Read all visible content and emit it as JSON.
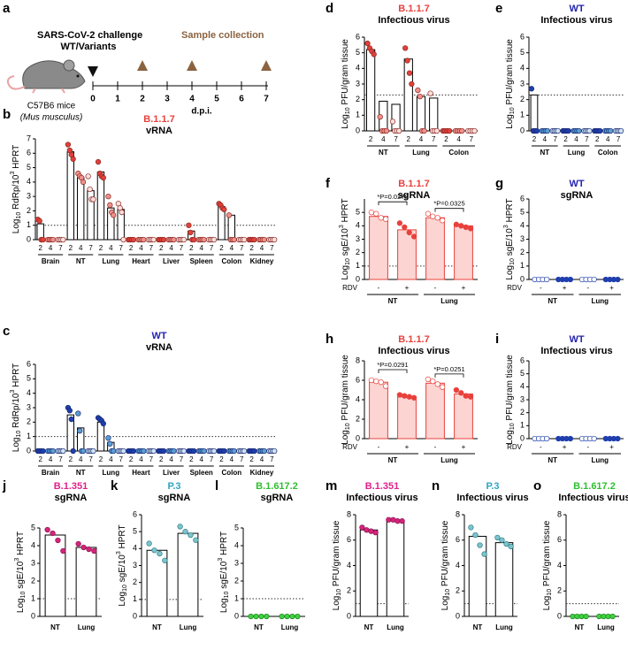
{
  "panel_a": {
    "label": "a",
    "challenge": "SARS-CoV-2 challenge",
    "variants": "WT/Variants",
    "collection": "Sample collection",
    "mouse": "C57B6 mice",
    "species": "(Mus musculus)",
    "xlabel": "d.p.i.",
    "days": [
      0,
      1,
      2,
      3,
      4,
      5,
      6,
      7
    ],
    "challenge_day": 0,
    "sample_days": [
      2,
      4,
      7
    ],
    "sample_color": "#8b6340"
  },
  "chart_data": [
    {
      "label": "b",
      "type": "bar",
      "title": "B.1.1.7",
      "subtitle": "vRNA",
      "title_color": "#e8413c",
      "ylabel": [
        "Log",
        "10",
        " RdRp/10",
        "3",
        " HPRT"
      ],
      "ylim": [
        0,
        7
      ],
      "yticks": [
        0,
        1,
        2,
        3,
        4,
        5,
        6,
        7
      ],
      "threshold": 1,
      "groups": [
        "Brain",
        "NT",
        "Lung",
        "Heart",
        "Liver",
        "Spleen",
        "Colon",
        "Kidney"
      ],
      "categories": [
        "2",
        "4",
        "7",
        "2",
        "4",
        "7",
        "2",
        "4",
        "7",
        "2",
        "4",
        "7",
        "2",
        "4",
        "7",
        "2",
        "4",
        "7",
        "2",
        "4",
        "7",
        "2",
        "4",
        "7"
      ],
      "values": [
        1.1,
        0,
        0,
        6.1,
        4.3,
        3.4,
        4.7,
        2.2,
        2.1,
        0,
        0,
        0,
        0,
        0,
        0,
        0.6,
        0,
        0,
        2.3,
        1.7,
        0,
        0,
        0,
        0
      ],
      "points": [
        [
          1.4,
          1.3,
          0,
          0
        ],
        [
          0,
          0,
          0,
          0
        ],
        [
          0,
          0,
          0,
          0
        ],
        [
          6.6,
          6.2,
          5.9,
          5.6
        ],
        [
          4.6,
          4.4,
          4.3,
          4.0
        ],
        [
          4.4,
          3.5,
          2.8,
          2.8
        ],
        [
          5.4,
          4.6,
          4.4,
          4.3
        ],
        [
          3.0,
          2.4,
          1.9,
          1.7
        ],
        [
          2.5,
          2.2,
          1.9,
          0
        ],
        [
          0,
          0,
          0,
          0
        ],
        [
          0,
          0,
          0,
          0
        ],
        [
          0,
          0,
          0,
          0
        ],
        [
          0,
          0,
          0,
          0
        ],
        [
          0,
          0,
          0,
          0
        ],
        [
          0,
          0,
          0,
          0
        ],
        [
          1.0,
          0.5,
          0,
          0
        ],
        [
          0,
          0,
          0,
          0
        ],
        [
          0,
          0,
          0,
          0
        ],
        [
          2.5,
          2.4,
          2.2,
          2.1
        ],
        [
          1.7,
          0,
          0,
          0
        ],
        [
          0,
          0,
          0,
          0
        ],
        [
          0,
          0,
          0,
          0
        ],
        [
          0,
          0,
          0,
          0
        ],
        [
          0,
          0,
          0,
          0
        ]
      ],
      "point_colors": [
        "#e0413a",
        "#f0908a",
        "#fbe0dd"
      ],
      "point_edge": "#8a2a25",
      "bar_color": "#ffffff",
      "bar_edge": "#000000"
    },
    {
      "label": "c",
      "type": "bar",
      "title": "WT",
      "subtitle": "vRNA",
      "title_color": "#2323b0",
      "ylabel": [
        "Log",
        "10",
        " RdRp/10",
        "3",
        " HPRT"
      ],
      "ylim": [
        0,
        6
      ],
      "yticks": [
        0,
        1,
        2,
        3,
        4,
        5,
        6
      ],
      "threshold": 1,
      "groups": [
        "Brain",
        "NT",
        "Lung",
        "Heart",
        "Liver",
        "Spleen",
        "Colon",
        "Kidney"
      ],
      "categories": [
        "2",
        "4",
        "7",
        "2",
        "4",
        "7",
        "2",
        "4",
        "7",
        "2",
        "4",
        "7",
        "2",
        "4",
        "7",
        "2",
        "4",
        "7",
        "2",
        "4",
        "7",
        "2",
        "4",
        "7"
      ],
      "values": [
        0,
        0,
        0,
        2.5,
        1.6,
        0,
        2.0,
        0.6,
        0,
        0,
        0,
        0,
        0,
        0,
        0,
        0,
        0,
        0,
        0,
        0,
        0,
        0,
        0,
        0
      ],
      "points": [
        [
          0,
          0,
          0,
          0
        ],
        [
          0,
          0,
          0,
          0
        ],
        [
          0,
          0,
          0,
          0
        ],
        [
          3.0,
          2.8,
          2.2,
          0
        ],
        [
          2.6,
          1.4,
          0,
          0
        ],
        [
          0,
          0,
          0,
          0
        ],
        [
          2.3,
          2.2,
          2.1,
          1.9
        ],
        [
          0.9,
          0.5,
          0,
          0
        ],
        [
          0,
          0,
          0,
          0
        ],
        [
          0,
          0,
          0,
          0
        ],
        [
          0,
          0,
          0,
          0
        ],
        [
          0,
          0,
          0,
          0
        ],
        [
          0,
          0,
          0,
          0
        ],
        [
          0,
          0,
          0,
          0
        ],
        [
          0,
          0,
          0,
          0
        ],
        [
          0,
          0,
          0,
          0
        ],
        [
          0,
          0,
          0,
          0
        ],
        [
          0,
          0,
          0,
          0
        ],
        [
          0,
          0,
          0,
          0
        ],
        [
          0,
          0,
          0,
          0
        ],
        [
          0,
          0,
          0,
          0
        ],
        [
          0,
          0,
          0,
          0
        ],
        [
          0,
          0,
          0,
          0
        ],
        [
          0,
          0,
          0,
          0
        ]
      ],
      "point_colors": [
        "#1f3fae",
        "#5a9fd4",
        "#cfe2f3"
      ],
      "point_edge": "#1a2a70",
      "bar_color": "#ffffff",
      "bar_edge": "#000000"
    },
    {
      "label": "d",
      "type": "bar",
      "title": "B.1.1.7",
      "subtitle": "Infectious virus",
      "title_color": "#e8413c",
      "ylabel": [
        "Log",
        "10",
        " PFU/gram tissue"
      ],
      "ylim": [
        0,
        6
      ],
      "yticks": [
        0,
        1,
        2,
        3,
        4,
        5,
        6
      ],
      "threshold": 2.3,
      "groups": [
        "NT",
        "Lung",
        "Colon"
      ],
      "categories": [
        "2",
        "4",
        "7",
        "2",
        "4",
        "7",
        "2",
        "4",
        "7"
      ],
      "values": [
        5.2,
        1.9,
        1.7,
        4.6,
        2.2,
        2.1,
        0,
        0,
        0
      ],
      "points": [
        [
          5.6,
          5.3,
          5.1,
          4.9
        ],
        [
          0.9,
          0,
          0,
          0
        ],
        [
          0.6,
          0,
          0,
          0
        ],
        [
          5.3,
          4.5,
          3.7,
          3.0
        ],
        [
          2.6,
          2.2,
          0,
          0
        ],
        [
          2.4,
          0,
          0,
          0
        ],
        [
          0,
          0,
          0,
          0
        ],
        [
          0,
          0,
          0,
          0
        ],
        [
          0,
          0,
          0,
          0
        ]
      ],
      "point_colors": [
        "#e0413a",
        "#f0908a",
        "#fbe0dd"
      ],
      "point_edge": "#8a2a25",
      "bar_color": "#ffffff",
      "bar_edge": "#000000"
    },
    {
      "label": "e",
      "type": "bar",
      "title": "WT",
      "subtitle": "Infectious virus",
      "title_color": "#2323b0",
      "ylabel": [
        "Log",
        "10",
        " PFU/gram tissue"
      ],
      "ylim": [
        0,
        6
      ],
      "yticks": [
        0,
        1,
        2,
        3,
        4,
        5,
        6
      ],
      "threshold": 2.3,
      "groups": [
        "NT",
        "Lung",
        "Colon"
      ],
      "categories": [
        "2",
        "4",
        "7",
        "2",
        "4",
        "7",
        "2",
        "4",
        "7"
      ],
      "values": [
        2.3,
        0,
        0,
        0,
        0,
        0,
        0,
        0,
        0
      ],
      "points": [
        [
          2.7,
          0,
          0,
          0
        ],
        [
          0,
          0,
          0,
          0
        ],
        [
          0,
          0,
          0,
          0
        ],
        [
          0,
          0,
          0,
          0
        ],
        [
          0,
          0,
          0,
          0
        ],
        [
          0,
          0,
          0,
          0
        ],
        [
          0,
          0,
          0,
          0
        ],
        [
          0,
          0,
          0,
          0
        ],
        [
          0,
          0,
          0,
          0
        ]
      ],
      "point_colors": [
        "#1f3fae",
        "#5a9fd4",
        "#cfe2f3"
      ],
      "point_edge": "#1a2a70",
      "bar_color": "#ffffff",
      "bar_edge": "#000000"
    },
    {
      "label": "f",
      "type": "bar",
      "title": "B.1.1.7",
      "subtitle": "sgRNA",
      "title_color": "#e8413c",
      "ylabel": [
        "Log",
        "10",
        " sgE/10",
        "3",
        " HPRT"
      ],
      "ylim": [
        0,
        6
      ],
      "yticks": [
        0,
        1,
        2,
        3,
        4,
        5
      ],
      "threshold": 1,
      "row_label": "RDV",
      "groups": [
        "NT",
        "Lung"
      ],
      "categories": [
        "-",
        "+",
        "-",
        "+"
      ],
      "values": [
        4.7,
        3.7,
        4.6,
        4.0
      ],
      "points": [
        [
          5.0,
          4.9,
          4.6,
          4.5
        ],
        [
          4.2,
          3.9,
          3.5,
          3.2
        ],
        [
          4.9,
          4.7,
          4.6,
          4.4
        ],
        [
          4.1,
          4.0,
          3.9,
          3.8
        ]
      ],
      "annotations": [
        "*P=0.0278",
        "*P=0.0325"
      ],
      "point_colors": [
        "#ffffff",
        "#e8413c"
      ],
      "point_edge": "#e8413c",
      "bar_color": "#fcd5d2",
      "bar_edge": "#e8413c"
    },
    {
      "label": "g",
      "type": "bar",
      "title": "WT",
      "subtitle": "sgRNA",
      "title_color": "#2323b0",
      "ylabel": [
        "Log",
        "10",
        " sgE/10",
        "3",
        " HPRT"
      ],
      "ylim": [
        0,
        6
      ],
      "yticks": [
        0,
        1,
        2,
        3,
        4,
        5,
        6
      ],
      "row_label": "RDV",
      "groups": [
        "NT",
        "Lung"
      ],
      "categories": [
        "-",
        "+",
        "-",
        "+"
      ],
      "values": [
        0,
        0,
        0,
        0
      ],
      "points": [
        [
          0,
          0,
          0,
          0
        ],
        [
          0,
          0,
          0,
          0
        ],
        [
          0,
          0,
          0,
          0
        ],
        [
          0,
          0,
          0,
          0
        ]
      ],
      "point_colors": [
        "#ffffff",
        "#1f3fae"
      ],
      "point_edge": "#1f3fae",
      "bar_color": "#ffffff",
      "bar_edge": "#000000"
    },
    {
      "label": "h",
      "type": "bar",
      "title": "B.1.1.7",
      "subtitle": "Infectious virus",
      "title_color": "#e8413c",
      "ylabel": [
        "Log",
        "10",
        " PFU/gram tissue"
      ],
      "ylim": [
        0,
        8
      ],
      "yticks": [
        0,
        2,
        4,
        6,
        8
      ],
      "row_label": "RDV",
      "groups": [
        "NT",
        "Lung"
      ],
      "categories": [
        "-",
        "+",
        "-",
        "+"
      ],
      "values": [
        5.8,
        4.3,
        5.7,
        4.6
      ],
      "points": [
        [
          6.0,
          5.9,
          5.8,
          5.4
        ],
        [
          4.5,
          4.4,
          4.3,
          4.2
        ],
        [
          6.1,
          5.9,
          5.6,
          5.3
        ],
        [
          5.0,
          4.7,
          4.4,
          4.3
        ]
      ],
      "annotations": [
        "*P=0.0291",
        "*P=0.0251"
      ],
      "point_colors": [
        "#ffffff",
        "#e8413c"
      ],
      "point_edge": "#e8413c",
      "bar_color": "#fcd5d2",
      "bar_edge": "#e8413c"
    },
    {
      "label": "i",
      "type": "bar",
      "title": "WT",
      "subtitle": "Infectious virus",
      "title_color": "#2323b0",
      "ylabel": [
        "Log",
        "10",
        " PFU/gram tissue"
      ],
      "ylim": [
        0,
        6
      ],
      "yticks": [
        0,
        1,
        2,
        3,
        4,
        5,
        6
      ],
      "row_label": "RDV",
      "groups": [
        "NT",
        "Lung"
      ],
      "categories": [
        "-",
        "+",
        "-",
        "+"
      ],
      "values": [
        0,
        0,
        0,
        0
      ],
      "points": [
        [
          0,
          0,
          0,
          0
        ],
        [
          0,
          0,
          0,
          0
        ],
        [
          0,
          0,
          0,
          0
        ],
        [
          0,
          0,
          0,
          0
        ]
      ],
      "point_colors": [
        "#ffffff",
        "#1f3fae"
      ],
      "point_edge": "#1f3fae",
      "bar_color": "#ffffff",
      "bar_edge": "#000000"
    },
    {
      "label": "j",
      "type": "bar",
      "title": "B.1.351",
      "subtitle": "sgRNA",
      "title_color": "#e0208a",
      "ylabel": [
        "Log",
        "10",
        " sgE/10",
        "3",
        " HPRT"
      ],
      "ylim": [
        0,
        5
      ],
      "yticks": [
        0,
        1,
        2,
        3,
        4,
        5
      ],
      "threshold": 1,
      "categories": [
        "NT",
        "Lung"
      ],
      "values": [
        4.6,
        3.9
      ],
      "points": [
        [
          4.9,
          4.7,
          4.3,
          3.7
        ],
        [
          4.1,
          3.9,
          3.8,
          3.7
        ]
      ],
      "point_colors": [
        "#d6247a"
      ],
      "point_edge": "#8a1550",
      "bar_color": "#ffffff",
      "bar_edge": "#000000"
    },
    {
      "label": "k",
      "type": "bar",
      "title": "P.3",
      "subtitle": "sgRNA",
      "title_color": "#2fa3c4",
      "ylabel": [
        "Log",
        "10",
        " sgE/10",
        "3",
        " HPRT"
      ],
      "ylim": [
        0,
        6
      ],
      "yticks": [
        0,
        1,
        2,
        3,
        4,
        5,
        6
      ],
      "threshold": 1,
      "categories": [
        "NT",
        "Lung"
      ],
      "values": [
        3.9,
        4.9
      ],
      "points": [
        [
          4.3,
          3.9,
          3.7,
          3.3
        ],
        [
          5.3,
          5.0,
          4.8,
          4.5
        ]
      ],
      "point_colors": [
        "#7cc4cc"
      ],
      "point_edge": "#2f7f88",
      "bar_color": "#ffffff",
      "bar_edge": "#000000"
    },
    {
      "label": "l",
      "type": "bar",
      "title": "B.1.617.2",
      "subtitle": "sgRNA",
      "title_color": "#2fbf2f",
      "ylabel": [
        "Log",
        "10",
        " sgE/10",
        "3",
        " HPRT"
      ],
      "ylim": [
        0,
        5
      ],
      "yticks": [
        0,
        1,
        2,
        3,
        4,
        5
      ],
      "threshold": 1,
      "categories": [
        "NT",
        "Lung"
      ],
      "values": [
        0,
        0
      ],
      "points": [
        [
          0,
          0,
          0,
          0
        ],
        [
          0,
          0,
          0,
          0
        ]
      ],
      "point_colors": [
        "#3fd13f"
      ],
      "point_edge": "#1f7f1f",
      "bar_color": "#ffffff",
      "bar_edge": "#000000"
    },
    {
      "label": "m",
      "type": "bar",
      "title": "B.1.351",
      "subtitle": "Infectious virus",
      "title_color": "#e0208a",
      "ylabel": [
        "Log",
        "10",
        " PFU/gram tissue"
      ],
      "ylim": [
        0,
        8
      ],
      "yticks": [
        0,
        2,
        4,
        6,
        8
      ],
      "threshold": 1,
      "categories": [
        "NT",
        "Lung"
      ],
      "values": [
        6.8,
        7.5
      ],
      "points": [
        [
          7.0,
          6.8,
          6.7,
          6.6
        ],
        [
          7.6,
          7.6,
          7.5,
          7.5
        ]
      ],
      "point_colors": [
        "#d6247a"
      ],
      "point_edge": "#8a1550",
      "bar_color": "#ffffff",
      "bar_edge": "#000000"
    },
    {
      "label": "n",
      "type": "bar",
      "title": "P.3",
      "subtitle": "Infectious virus",
      "title_color": "#2fa3c4",
      "ylabel": [
        "Log",
        "10",
        " PFU/gram tissue"
      ],
      "ylim": [
        0,
        8
      ],
      "yticks": [
        0,
        2,
        4,
        6,
        8
      ],
      "threshold": 1,
      "categories": [
        "NT",
        "Lung"
      ],
      "values": [
        6.3,
        5.8
      ],
      "points": [
        [
          7.0,
          6.4,
          5.6,
          4.9
        ],
        [
          6.2,
          6.0,
          5.7,
          5.5
        ]
      ],
      "point_colors": [
        "#7cc4cc"
      ],
      "point_edge": "#2f7f88",
      "bar_color": "#ffffff",
      "bar_edge": "#000000"
    },
    {
      "label": "o",
      "type": "bar",
      "title": "B.1.617.2",
      "subtitle": "Infectious virus",
      "title_color": "#2fbf2f",
      "ylabel": [
        "Log",
        "10",
        " PFU/gram tissue"
      ],
      "ylim": [
        0,
        8
      ],
      "yticks": [
        0,
        2,
        4,
        6,
        8
      ],
      "threshold": 1,
      "categories": [
        "NT",
        "Lung"
      ],
      "values": [
        0,
        0
      ],
      "points": [
        [
          0,
          0,
          0,
          0
        ],
        [
          0,
          0,
          0,
          0
        ]
      ],
      "point_colors": [
        "#3fd13f"
      ],
      "point_edge": "#1f7f1f",
      "bar_color": "#ffffff",
      "bar_edge": "#000000"
    }
  ]
}
